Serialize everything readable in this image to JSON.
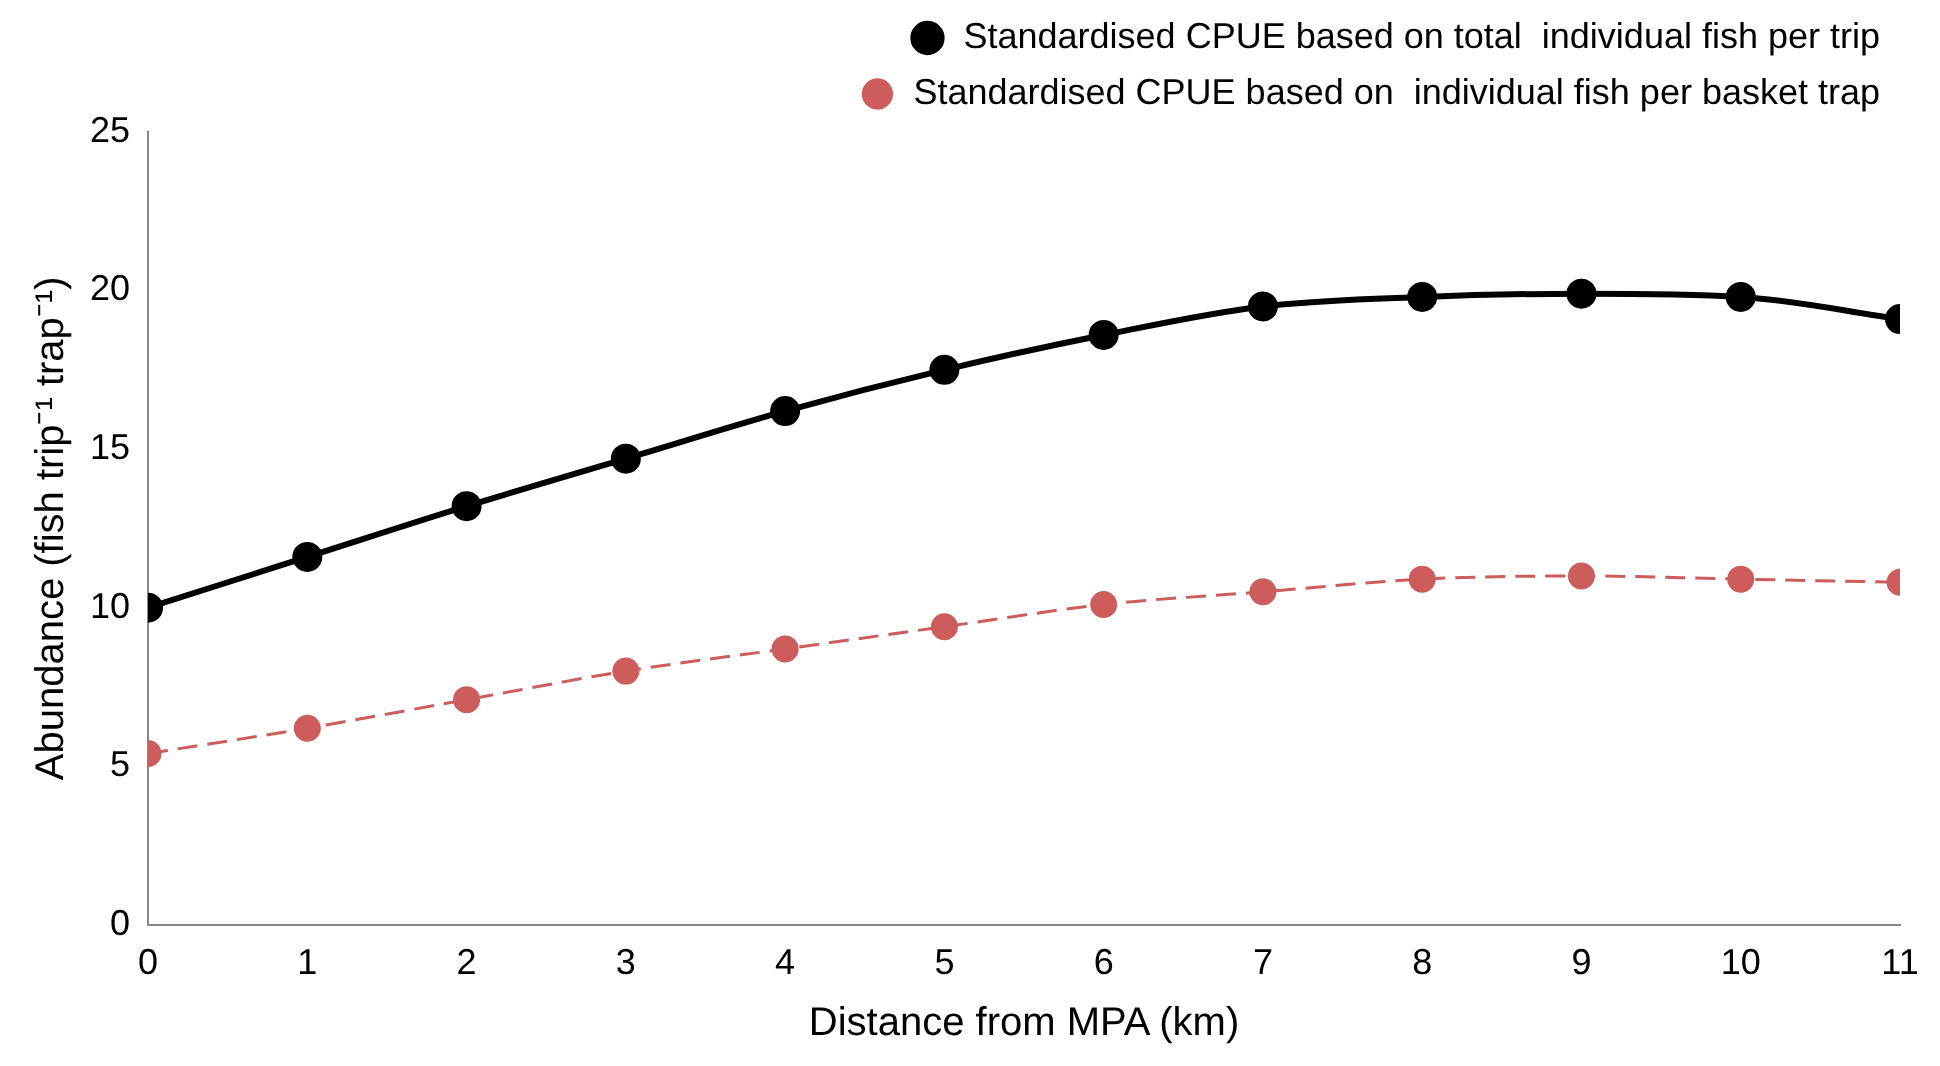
{
  "chart_data": {
    "type": "line",
    "xlabel": "Distance from MPA (km)",
    "ylabel": "Abundance (fish trip⁻¹ trap⁻¹)",
    "x": [
      0,
      1,
      2,
      3,
      4,
      5,
      6,
      7,
      8,
      9,
      10,
      11
    ],
    "xlim": [
      0,
      11
    ],
    "xticks": [
      0,
      1,
      2,
      3,
      4,
      5,
      6,
      7,
      8,
      9,
      10,
      11
    ],
    "ylim": [
      0,
      25
    ],
    "yticks": [
      0,
      5,
      10,
      15,
      20,
      25
    ],
    "grid": false,
    "legend": "top right",
    "marker": "circle",
    "series": [
      {
        "name": "Standardised CPUE based on total  individual fish per trip",
        "color": "#000000",
        "line_style": "solid",
        "values": [
          10.0,
          11.6,
          13.2,
          14.7,
          16.2,
          17.5,
          18.6,
          19.5,
          19.8,
          19.9,
          19.8,
          19.1
        ]
      },
      {
        "name": "Standardised CPUE based on  individual fish per basket trap",
        "color": "#cd5c5c",
        "line_style": "dashed",
        "values": [
          5.4,
          6.2,
          7.1,
          8.0,
          8.7,
          9.4,
          10.1,
          10.5,
          10.9,
          11.0,
          10.9,
          10.8
        ]
      }
    ]
  }
}
